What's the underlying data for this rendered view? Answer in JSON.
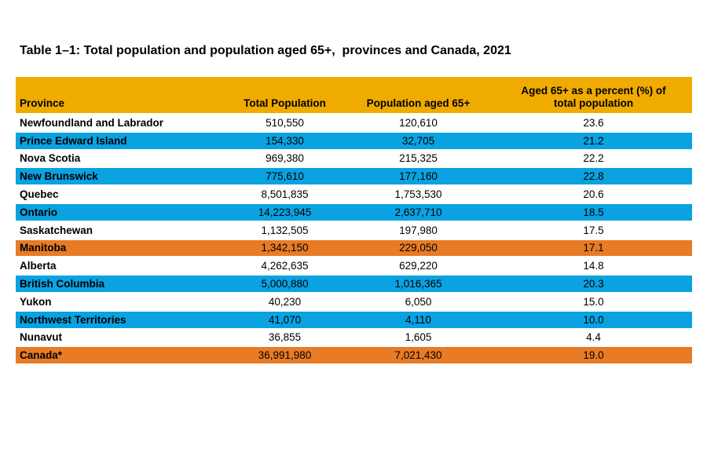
{
  "title": "Table 1–1: Total population and population aged 65+,  provinces and Canada, 2021",
  "chart_data": {
    "type": "table",
    "title": "Table 1–1: Total population and population aged 65+,  provinces and Canada, 2021",
    "columns": [
      "Province",
      "Total Population",
      "Population aged 65+",
      "Aged 65+ as a percent (%) of\ntotal population"
    ],
    "rows": [
      {
        "province": "Newfoundland and Labrador",
        "total_population": "510,550",
        "population_65plus": "120,610",
        "pct_65plus": "23.6",
        "row_color": "white"
      },
      {
        "province": "Prince Edward Island",
        "total_population": "154,330",
        "population_65plus": "32,705",
        "pct_65plus": "21.2",
        "row_color": "blue"
      },
      {
        "province": "Nova Scotia",
        "total_population": "969,380",
        "population_65plus": "215,325",
        "pct_65plus": "22.2",
        "row_color": "white"
      },
      {
        "province": "New Brunswick",
        "total_population": "775,610",
        "population_65plus": "177,160",
        "pct_65plus": "22.8",
        "row_color": "blue"
      },
      {
        "province": "Quebec",
        "total_population": "8,501,835",
        "population_65plus": "1,753,530",
        "pct_65plus": "20.6",
        "row_color": "white"
      },
      {
        "province": "Ontario",
        "total_population": "14,223,945",
        "population_65plus": "2,637,710",
        "pct_65plus": "18.5",
        "row_color": "blue"
      },
      {
        "province": "Saskatchewan",
        "total_population": "1,132,505",
        "population_65plus": "197,980",
        "pct_65plus": "17.5",
        "row_color": "white"
      },
      {
        "province": "Manitoba",
        "total_population": "1,342,150",
        "population_65plus": "229,050",
        "pct_65plus": "17.1",
        "row_color": "orange"
      },
      {
        "province": "Alberta",
        "total_population": "4,262,635",
        "population_65plus": "629,220",
        "pct_65plus": "14.8",
        "row_color": "white"
      },
      {
        "province": "British Columbia",
        "total_population": "5,000,880",
        "population_65plus": "1,016,365",
        "pct_65plus": "20.3",
        "row_color": "blue"
      },
      {
        "province": "Yukon",
        "total_population": "40,230",
        "population_65plus": "6,050",
        "pct_65plus": "15.0",
        "row_color": "white"
      },
      {
        "province": "Northwest Territories",
        "total_population": "41,070",
        "population_65plus": "4,110",
        "pct_65plus": "10.0",
        "row_color": "blue"
      },
      {
        "province": "Nunavut",
        "total_population": "36,855",
        "population_65plus": "1,605",
        "pct_65plus": "4.4",
        "row_color": "white"
      },
      {
        "province": "Canada*",
        "total_population": "36,991,980",
        "population_65plus": "7,021,430",
        "pct_65plus": "19.0",
        "row_color": "orange"
      }
    ],
    "layout": {
      "grid": false,
      "row_stripe_colors": [
        "white",
        "blue"
      ],
      "highlight_rows": [
        "Manitoba",
        "Canada*"
      ]
    }
  },
  "colors": {
    "header": "#F0AB00",
    "blue": "#0AA2E0",
    "orange": "#E87B25",
    "white": "#FFFFFF",
    "text": "#000000",
    "background": "#FFFFFF"
  }
}
